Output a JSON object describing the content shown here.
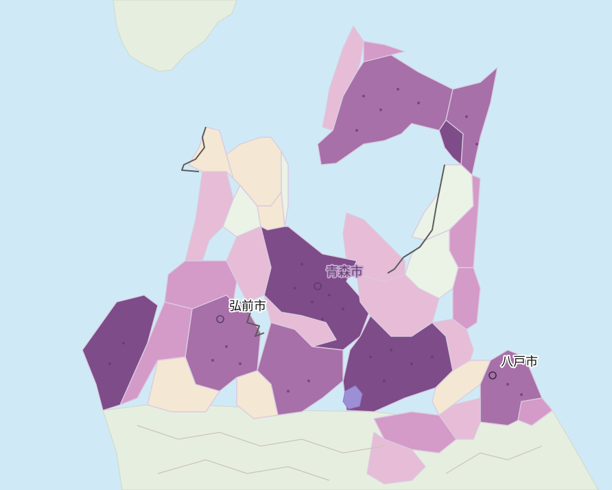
{
  "colors": {
    "sea": "#cfeaf6",
    "land": "#e6eee0",
    "class_1": "#f4e7d4",
    "class_2": "#ebf2e6",
    "class_3": "#e6bcd6",
    "class_4": "#d49ac8",
    "class_5": "#a770a8",
    "class_6": "#7e4c89"
  },
  "cities": [
    {
      "id": "aomori",
      "name": "青森市",
      "marker": "circle"
    },
    {
      "id": "hirosaki",
      "name": "弘前市",
      "marker": "circle"
    },
    {
      "id": "hachinohe",
      "name": "八戸市",
      "marker": "circle"
    }
  ]
}
